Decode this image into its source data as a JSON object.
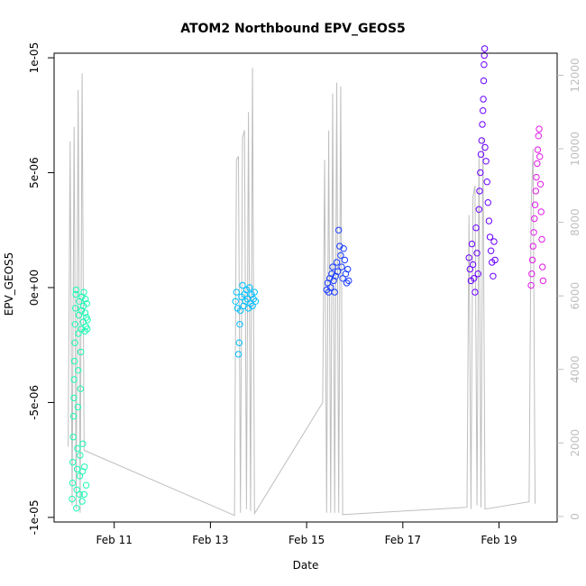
{
  "chart_data": {
    "type": "scatter",
    "title": "ATOM2 Northbound EPV_GEOS5",
    "xlabel": "Date",
    "ylabel": "EPV_GEOS5",
    "x_axis": {
      "type": "date",
      "range": [
        "2016-02-09T18:00",
        "2016-02-20T05:00"
      ],
      "ticks": [
        {
          "x": "2016-02-11",
          "label": "Feb 11"
        },
        {
          "x": "2016-02-13",
          "label": "Feb 13"
        },
        {
          "x": "2016-02-15",
          "label": "Feb 15"
        },
        {
          "x": "2016-02-17",
          "label": "Feb 17"
        },
        {
          "x": "2016-02-19",
          "label": "Feb 19"
        }
      ]
    },
    "y_axis": {
      "range": [
        -1.02e-05,
        1.02e-05
      ],
      "ticks": [
        {
          "y": -1e-05,
          "label": "-1e-05"
        },
        {
          "y": -5e-06,
          "label": "-5e-06"
        },
        {
          "y": 0,
          "label": "0e+00"
        },
        {
          "y": 5e-06,
          "label": "5e-06"
        },
        {
          "y": 1e-05,
          "label": "1e-05"
        }
      ]
    },
    "y2_axis": {
      "range": [
        -150,
        12600
      ],
      "color": "#bebebe",
      "ticks": [
        {
          "y": 0,
          "label": "0"
        },
        {
          "y": 2000,
          "label": "2000"
        },
        {
          "y": 4000,
          "label": "4000"
        },
        {
          "y": 6000,
          "label": "6000"
        },
        {
          "y": 8000,
          "label": "8000"
        },
        {
          "y": 10000,
          "label": "10000"
        },
        {
          "y": 12000,
          "label": "12000"
        }
      ]
    },
    "grid": false,
    "legend": "none",
    "series": [
      {
        "color": "#1afcb4",
        "marker": "open-circle",
        "points": [
          [
            "2016-02-10T03:00",
            -9.2e-06
          ],
          [
            "2016-02-10T03:10",
            -8.5e-06
          ],
          [
            "2016-02-10T03:20",
            -7.6e-06
          ],
          [
            "2016-02-10T03:30",
            -6.5e-06
          ],
          [
            "2016-02-10T03:40",
            -5.6e-06
          ],
          [
            "2016-02-10T03:50",
            -4.8e-06
          ],
          [
            "2016-02-10T04:00",
            -4e-06
          ],
          [
            "2016-02-10T04:10",
            -3.2e-06
          ],
          [
            "2016-02-10T04:20",
            -2.4e-06
          ],
          [
            "2016-02-10T04:30",
            -1.6e-06
          ],
          [
            "2016-02-10T04:40",
            -9e-07
          ],
          [
            "2016-02-10T04:50",
            -3e-07
          ],
          [
            "2016-02-10T05:00",
            -1e-07
          ],
          [
            "2016-02-10T05:10",
            -9.6e-06
          ],
          [
            "2016-02-10T05:20",
            -8.8e-06
          ],
          [
            "2016-02-10T05:30",
            -7.9e-06
          ],
          [
            "2016-02-10T05:40",
            -7e-06
          ],
          [
            "2016-02-10T05:50",
            -5.2e-06
          ],
          [
            "2016-02-10T06:00",
            -3.6e-06
          ],
          [
            "2016-02-10T06:10",
            -2e-06
          ],
          [
            "2016-02-10T06:20",
            -1.2e-06
          ],
          [
            "2016-02-10T06:30",
            -6e-07
          ],
          [
            "2016-02-10T06:40",
            -9e-06
          ],
          [
            "2016-02-10T06:50",
            -8.2e-06
          ],
          [
            "2016-02-10T07:00",
            -7.3e-06
          ],
          [
            "2016-02-10T07:10",
            -4.4e-06
          ],
          [
            "2016-02-10T07:20",
            -2.8e-06
          ],
          [
            "2016-02-10T07:30",
            -1.8e-06
          ],
          [
            "2016-02-10T07:40",
            -1e-06
          ],
          [
            "2016-02-10T07:50",
            -4e-07
          ],
          [
            "2016-02-10T08:00",
            -9.3e-06
          ],
          [
            "2016-02-10T08:10",
            -8e-06
          ],
          [
            "2016-02-10T08:20",
            -6.8e-06
          ],
          [
            "2016-02-10T08:30",
            -1.5e-06
          ],
          [
            "2016-02-10T08:40",
            -8e-07
          ],
          [
            "2016-02-10T08:50",
            -2e-07
          ],
          [
            "2016-02-10T09:00",
            -9e-06
          ],
          [
            "2016-02-10T09:10",
            -7.8e-06
          ],
          [
            "2016-02-10T09:20",
            -1.9e-06
          ],
          [
            "2016-02-10T09:30",
            -1.1e-06
          ],
          [
            "2016-02-10T09:40",
            -5e-07
          ],
          [
            "2016-02-10T09:50",
            -1.7e-06
          ],
          [
            "2016-02-10T10:00",
            -8.6e-06
          ],
          [
            "2016-02-10T10:10",
            -1.3e-06
          ],
          [
            "2016-02-10T10:20",
            -7e-07
          ],
          [
            "2016-02-10T10:30",
            -1.8e-06
          ],
          [
            "2016-02-10T10:40",
            -1.4e-06
          ]
        ]
      },
      {
        "color": "#00bfff",
        "marker": "open-circle",
        "points": [
          [
            "2016-02-13T12:30",
            -6e-07
          ],
          [
            "2016-02-13T13:00",
            -2e-07
          ],
          [
            "2016-02-13T13:30",
            -9e-07
          ],
          [
            "2016-02-13T14:00",
            -2.9e-06
          ],
          [
            "2016-02-13T14:20",
            -2.4e-06
          ],
          [
            "2016-02-13T14:40",
            -1.6e-06
          ],
          [
            "2016-02-13T15:00",
            -1e-06
          ],
          [
            "2016-02-13T15:30",
            -4e-07
          ],
          [
            "2016-02-13T16:00",
            1e-07
          ],
          [
            "2016-02-13T16:30",
            -8e-07
          ],
          [
            "2016-02-13T17:00",
            -3e-07
          ],
          [
            "2016-02-13T17:30",
            -6e-07
          ],
          [
            "2016-02-13T18:00",
            -1e-07
          ],
          [
            "2016-02-13T18:30",
            -5e-07
          ],
          [
            "2016-02-13T19:00",
            -9e-07
          ],
          [
            "2016-02-13T19:30",
            0.0
          ],
          [
            "2016-02-13T20:00",
            -7e-07
          ],
          [
            "2016-02-13T20:30",
            -3e-07
          ],
          [
            "2016-02-13T21:00",
            -8e-07
          ],
          [
            "2016-02-13T21:30",
            -5e-07
          ],
          [
            "2016-02-13T22:00",
            -2e-07
          ],
          [
            "2016-02-13T22:30",
            -6e-07
          ]
        ]
      },
      {
        "color": "#1a3cff",
        "marker": "open-circle",
        "points": [
          [
            "2016-02-15T10:00",
            -1e-07
          ],
          [
            "2016-02-15T10:30",
            2e-07
          ],
          [
            "2016-02-15T11:00",
            -2e-07
          ],
          [
            "2016-02-15T11:30",
            4e-07
          ],
          [
            "2016-02-15T12:00",
            0.0
          ],
          [
            "2016-02-15T12:30",
            6e-07
          ],
          [
            "2016-02-15T13:00",
            9e-07
          ],
          [
            "2016-02-15T13:30",
            3e-07
          ],
          [
            "2016-02-15T14:00",
            -2e-07
          ],
          [
            "2016-02-15T14:30",
            5e-07
          ],
          [
            "2016-02-15T15:00",
            1.1e-06
          ],
          [
            "2016-02-15T15:30",
            7e-07
          ],
          [
            "2016-02-15T16:00",
            2.5e-06
          ],
          [
            "2016-02-15T16:30",
            1.8e-06
          ],
          [
            "2016-02-15T17:00",
            1.4e-06
          ],
          [
            "2016-02-15T17:30",
            9e-07
          ],
          [
            "2016-02-15T18:00",
            4e-07
          ],
          [
            "2016-02-15T18:30",
            1.7e-06
          ],
          [
            "2016-02-15T19:00",
            1.2e-06
          ],
          [
            "2016-02-15T19:30",
            6e-07
          ],
          [
            "2016-02-15T20:00",
            2e-07
          ],
          [
            "2016-02-15T20:30",
            8e-07
          ],
          [
            "2016-02-15T21:00",
            3e-07
          ]
        ]
      },
      {
        "color": "#6a00ff",
        "marker": "open-circle",
        "points": [
          [
            "2016-02-18T09:00",
            1.3e-06
          ],
          [
            "2016-02-18T09:30",
            8e-07
          ],
          [
            "2016-02-18T10:00",
            3e-07
          ],
          [
            "2016-02-18T10:30",
            1.9e-06
          ],
          [
            "2016-02-18T11:00",
            1e-06
          ],
          [
            "2016-02-18T11:30",
            4e-07
          ],
          [
            "2016-02-18T12:00",
            -2e-07
          ],
          [
            "2016-02-18T12:30",
            2.6e-06
          ],
          [
            "2016-02-18T13:00",
            1.5e-06
          ],
          [
            "2016-02-18T13:30",
            6e-07
          ],
          [
            "2016-02-18T14:00",
            3.4e-06
          ],
          [
            "2016-02-18T14:20",
            4.2e-06
          ],
          [
            "2016-02-18T14:40",
            5e-06
          ],
          [
            "2016-02-18T15:00",
            5.8e-06
          ],
          [
            "2016-02-18T15:20",
            6.4e-06
          ],
          [
            "2016-02-18T15:40",
            7.1e-06
          ],
          [
            "2016-02-18T16:00",
            7.7e-06
          ],
          [
            "2016-02-18T16:10",
            8.2e-06
          ],
          [
            "2016-02-18T16:20",
            9e-06
          ],
          [
            "2016-02-18T16:30",
            9.7e-06
          ],
          [
            "2016-02-18T16:40",
            1.01e-05
          ],
          [
            "2016-02-18T16:50",
            1.04e-05
          ],
          [
            "2016-02-18T17:00",
            6.1e-06
          ],
          [
            "2016-02-18T17:30",
            5.5e-06
          ],
          [
            "2016-02-18T18:00",
            4.6e-06
          ],
          [
            "2016-02-18T18:30",
            3.7e-06
          ],
          [
            "2016-02-18T19:00",
            2.9e-06
          ],
          [
            "2016-02-18T19:30",
            2.2e-06
          ],
          [
            "2016-02-18T20:00",
            1.6e-06
          ],
          [
            "2016-02-18T20:30",
            1.1e-06
          ],
          [
            "2016-02-18T21:00",
            5e-07
          ],
          [
            "2016-02-18T21:30",
            2e-06
          ],
          [
            "2016-02-18T22:00",
            1.2e-06
          ]
        ]
      },
      {
        "color": "#e21ae8",
        "marker": "open-circle",
        "points": [
          [
            "2016-02-19T16:00",
            1e-07
          ],
          [
            "2016-02-19T16:20",
            6e-07
          ],
          [
            "2016-02-19T16:40",
            1.2e-06
          ],
          [
            "2016-02-19T17:00",
            1.8e-06
          ],
          [
            "2016-02-19T17:20",
            2.4e-06
          ],
          [
            "2016-02-19T17:40",
            3e-06
          ],
          [
            "2016-02-19T18:00",
            3.6e-06
          ],
          [
            "2016-02-19T18:20",
            4.2e-06
          ],
          [
            "2016-02-19T18:40",
            4.8e-06
          ],
          [
            "2016-02-19T19:00",
            5.4e-06
          ],
          [
            "2016-02-19T19:20",
            6e-06
          ],
          [
            "2016-02-19T19:40",
            6.6e-06
          ],
          [
            "2016-02-19T20:00",
            6.9e-06
          ],
          [
            "2016-02-19T20:20",
            5.7e-06
          ],
          [
            "2016-02-19T20:40",
            4.5e-06
          ],
          [
            "2016-02-19T21:00",
            3.3e-06
          ],
          [
            "2016-02-19T21:20",
            2.1e-06
          ],
          [
            "2016-02-19T21:40",
            9e-07
          ],
          [
            "2016-02-19T22:00",
            3e-07
          ]
        ]
      },
      {
        "axis": "right",
        "color": "#bebebe",
        "marker": "line",
        "points": [
          [
            "2016-02-10T01:00",
            1900
          ],
          [
            "2016-02-10T02:00",
            10200
          ],
          [
            "2016-02-10T03:00",
            300
          ],
          [
            "2016-02-10T04:00",
            10600
          ],
          [
            "2016-02-10T05:00",
            200
          ],
          [
            "2016-02-10T06:00",
            11600
          ],
          [
            "2016-02-10T07:00",
            100
          ],
          [
            "2016-02-10T08:00",
            12050
          ],
          [
            "2016-02-10T09:00",
            1800
          ],
          [
            "2016-02-13T12:00",
            30
          ],
          [
            "2016-02-13T13:00",
            9700
          ],
          [
            "2016-02-13T14:00",
            9800
          ],
          [
            "2016-02-13T15:00",
            100
          ],
          [
            "2016-02-13T16:00",
            10300
          ],
          [
            "2016-02-13T17:00",
            10500
          ],
          [
            "2016-02-13T18:00",
            200
          ],
          [
            "2016-02-13T19:00",
            11000
          ],
          [
            "2016-02-13T20:00",
            150
          ],
          [
            "2016-02-13T21:00",
            12200
          ],
          [
            "2016-02-13T22:00",
            80
          ],
          [
            "2016-02-15T08:00",
            3100
          ],
          [
            "2016-02-15T09:00",
            9700
          ],
          [
            "2016-02-15T10:00",
            100
          ],
          [
            "2016-02-15T11:00",
            10500
          ],
          [
            "2016-02-15T12:00",
            100
          ],
          [
            "2016-02-15T13:00",
            11500
          ],
          [
            "2016-02-15T14:00",
            100
          ],
          [
            "2016-02-15T15:00",
            11800
          ],
          [
            "2016-02-15T16:00",
            100
          ],
          [
            "2016-02-15T17:00",
            11700
          ],
          [
            "2016-02-15T18:00",
            50
          ],
          [
            "2016-02-18T08:00",
            250
          ],
          [
            "2016-02-18T09:00",
            8200
          ],
          [
            "2016-02-18T10:00",
            200
          ],
          [
            "2016-02-18T11:00",
            8700
          ],
          [
            "2016-02-18T12:00",
            9000
          ],
          [
            "2016-02-18T13:00",
            300
          ],
          [
            "2016-02-18T14:00",
            9800
          ],
          [
            "2016-02-18T15:00",
            250
          ],
          [
            "2016-02-18T16:00",
            10300
          ],
          [
            "2016-02-18T17:00",
            200
          ],
          [
            "2016-02-19T15:00",
            400
          ],
          [
            "2016-02-19T16:00",
            8400
          ],
          [
            "2016-02-19T17:00",
            10000
          ],
          [
            "2016-02-19T18:00",
            350
          ]
        ]
      }
    ]
  }
}
